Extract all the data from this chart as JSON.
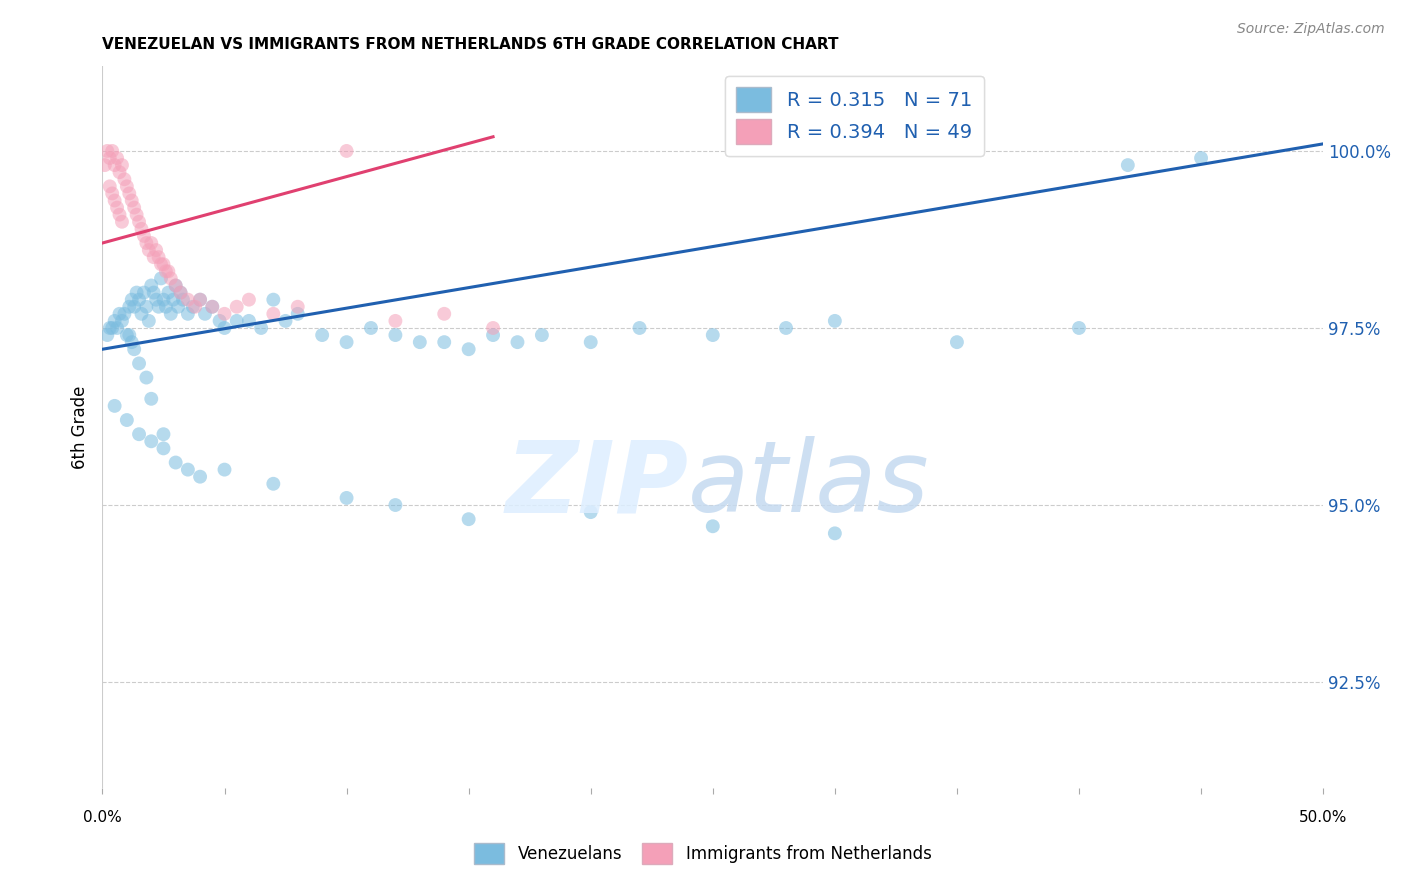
{
  "title": "VENEZUELAN VS IMMIGRANTS FROM NETHERLANDS 6TH GRADE CORRELATION CHART",
  "source": "Source: ZipAtlas.com",
  "ylabel": "6th Grade",
  "yticks": [
    92.5,
    95.0,
    97.5,
    100.0
  ],
  "ytick_labels": [
    "92.5%",
    "95.0%",
    "97.5%",
    "100.0%"
  ],
  "xrange": [
    0.0,
    50.0
  ],
  "yrange": [
    91.0,
    101.2
  ],
  "blue_scatter_x": [
    0.2,
    0.3,
    0.4,
    0.5,
    0.6,
    0.7,
    0.8,
    0.9,
    1.0,
    1.1,
    1.2,
    1.3,
    1.4,
    1.5,
    1.6,
    1.7,
    1.8,
    1.9,
    2.0,
    2.1,
    2.2,
    2.3,
    2.4,
    2.5,
    2.6,
    2.7,
    2.8,
    2.9,
    3.0,
    3.1,
    3.2,
    3.3,
    3.5,
    3.7,
    4.0,
    4.2,
    4.5,
    4.8,
    5.0,
    5.5,
    6.0,
    6.5,
    7.0,
    7.5,
    8.0,
    9.0,
    10.0,
    11.0,
    12.0,
    13.0,
    14.0,
    15.0,
    16.0,
    17.0,
    18.0,
    20.0,
    22.0,
    25.0,
    28.0,
    30.0,
    35.0,
    40.0,
    42.0,
    45.0,
    1.1,
    1.2,
    1.3,
    1.5,
    1.8,
    2.0,
    2.5
  ],
  "blue_scatter_y": [
    97.4,
    97.5,
    97.5,
    97.6,
    97.5,
    97.7,
    97.6,
    97.7,
    97.4,
    97.8,
    97.9,
    97.8,
    98.0,
    97.9,
    97.7,
    98.0,
    97.8,
    97.6,
    98.1,
    98.0,
    97.9,
    97.8,
    98.2,
    97.9,
    97.8,
    98.0,
    97.7,
    97.9,
    98.1,
    97.8,
    98.0,
    97.9,
    97.7,
    97.8,
    97.9,
    97.7,
    97.8,
    97.6,
    97.5,
    97.6,
    97.6,
    97.5,
    97.9,
    97.6,
    97.7,
    97.4,
    97.3,
    97.5,
    97.4,
    97.3,
    97.3,
    97.2,
    97.4,
    97.3,
    97.4,
    97.3,
    97.5,
    97.4,
    97.5,
    97.6,
    97.3,
    97.5,
    99.8,
    99.9,
    97.4,
    97.3,
    97.2,
    97.0,
    96.8,
    96.5,
    96.0
  ],
  "blue_scatter_x2": [
    0.5,
    1.0,
    1.5,
    2.0,
    2.5,
    3.0,
    3.5,
    4.0,
    5.0,
    7.0,
    10.0,
    12.0,
    15.0,
    20.0,
    25.0,
    30.0
  ],
  "blue_scatter_y2": [
    96.4,
    96.2,
    96.0,
    95.9,
    95.8,
    95.6,
    95.5,
    95.4,
    95.5,
    95.3,
    95.1,
    95.0,
    94.8,
    94.9,
    94.7,
    94.6
  ],
  "pink_scatter_x": [
    0.1,
    0.2,
    0.3,
    0.4,
    0.5,
    0.6,
    0.7,
    0.8,
    0.9,
    1.0,
    1.1,
    1.2,
    1.3,
    1.4,
    1.5,
    1.6,
    1.7,
    1.8,
    1.9,
    2.0,
    2.1,
    2.2,
    2.3,
    2.4,
    2.5,
    2.6,
    2.7,
    2.8,
    3.0,
    3.2,
    3.5,
    3.8,
    4.0,
    4.5,
    5.0,
    5.5,
    6.0,
    7.0,
    8.0,
    10.0,
    12.0,
    14.0,
    16.0,
    0.3,
    0.4,
    0.5,
    0.6,
    0.7,
    0.8
  ],
  "pink_scatter_y": [
    99.8,
    100.0,
    99.9,
    100.0,
    99.8,
    99.9,
    99.7,
    99.8,
    99.6,
    99.5,
    99.4,
    99.3,
    99.2,
    99.1,
    99.0,
    98.9,
    98.8,
    98.7,
    98.6,
    98.7,
    98.5,
    98.6,
    98.5,
    98.4,
    98.4,
    98.3,
    98.3,
    98.2,
    98.1,
    98.0,
    97.9,
    97.8,
    97.9,
    97.8,
    97.7,
    97.8,
    97.9,
    97.7,
    97.8,
    100.0,
    97.6,
    97.7,
    97.5,
    99.5,
    99.4,
    99.3,
    99.2,
    99.1,
    99.0
  ],
  "blue_line_x": [
    0.0,
    50.0
  ],
  "blue_line_y": [
    97.2,
    100.1
  ],
  "pink_line_x": [
    0.0,
    16.0
  ],
  "pink_line_y": [
    98.7,
    100.2
  ],
  "blue_color": "#7bbcdf",
  "pink_color": "#f4a0b8",
  "blue_line_color": "#2060b0",
  "pink_line_color": "#e04070",
  "dot_size": 100,
  "dot_alpha": 0.55,
  "legend_blue_label": "R = 0.315   N = 71",
  "legend_pink_label": "R = 0.394   N = 49",
  "bottom_legend": [
    "Venezuelans",
    "Immigrants from Netherlands"
  ]
}
